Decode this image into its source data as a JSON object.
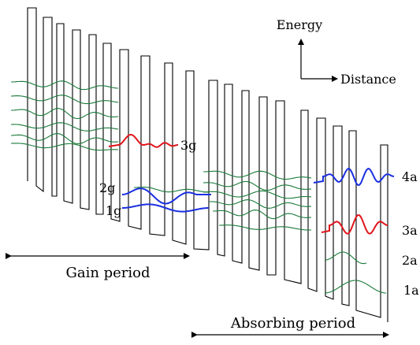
{
  "axes": {
    "vertical_label": "Energy",
    "horizontal_label": "Distance"
  },
  "periods": {
    "gain": "Gain period",
    "absorbing": "Absorbing period"
  },
  "state_labels": {
    "g3": "3g",
    "g2": "2g",
    "g1": "1g",
    "a4": "4a",
    "a3": "3a",
    "a2": "2a",
    "a1": "1a"
  },
  "colors": {
    "barrier": "#000000",
    "background_states": "#1a7a3a",
    "level_3": "#e0151b",
    "level_12_4": "#1a2fe0",
    "text": "#000000"
  }
}
